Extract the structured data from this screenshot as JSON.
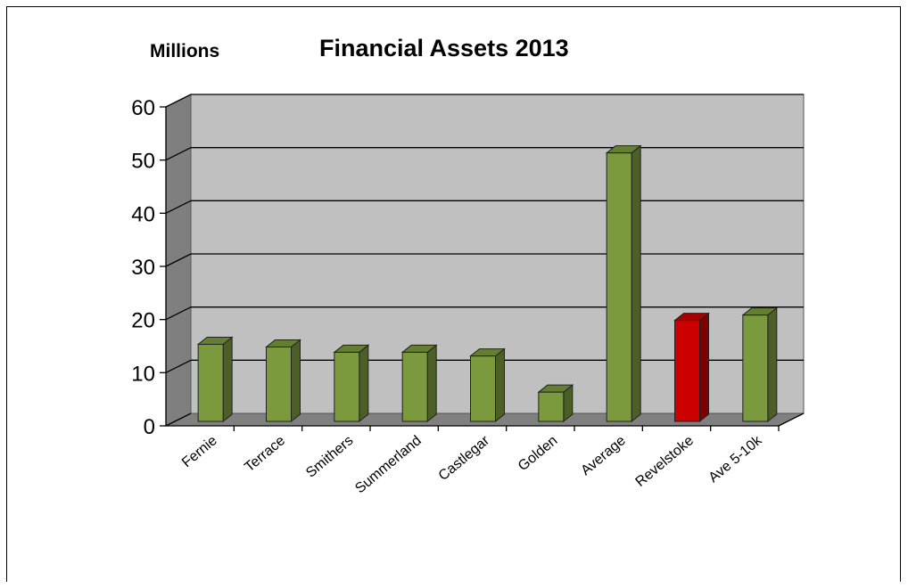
{
  "chart_data": {
    "type": "bar",
    "title": "Financial Assets 2013",
    "unit_label": "Millions",
    "categories": [
      "Fernie",
      "Terrace",
      "Smithers",
      "Summerland",
      "Castlegar",
      "Golden",
      "Average",
      "Revelstoke",
      "Ave 5-10k"
    ],
    "values": [
      14.5,
      14,
      13,
      13,
      12.3,
      5.5,
      50.5,
      19,
      20
    ],
    "bar_colors": [
      "#7a9a3d",
      "#7a9a3d",
      "#7a9a3d",
      "#7a9a3d",
      "#7a9a3d",
      "#7a9a3d",
      "#7a9a3d",
      "#cc0000",
      "#7a9a3d"
    ],
    "ylim": [
      0,
      60
    ],
    "yticks": [
      0,
      10,
      20,
      30,
      40,
      50,
      60
    ],
    "grid": true,
    "legend": "none"
  }
}
